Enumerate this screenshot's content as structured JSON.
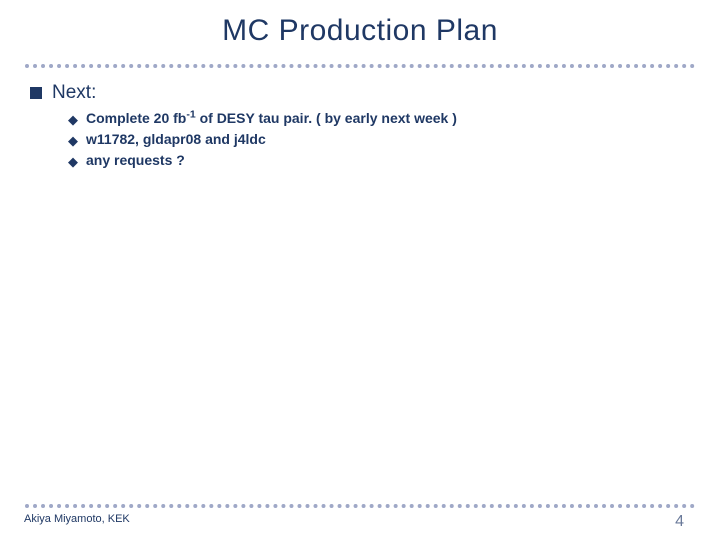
{
  "title": "MC Production Plan",
  "colors": {
    "text_primary": "#1f3864",
    "divider": "#9fa8c7",
    "page_number": "#6a7a9a",
    "background": "#ffffff"
  },
  "typography": {
    "title_fontsize": 30,
    "l1_fontsize": 19,
    "l2_fontsize": 14,
    "l2_fontweight": "bold",
    "footer_left_fontsize": 11,
    "footer_right_fontsize": 16
  },
  "content": {
    "l1_label": "Next:",
    "items": [
      {
        "prefix": "Complete 20 fb",
        "sup": "-1",
        "suffix": "  of DESY tau pair.  ( by early next week )"
      },
      {
        "text": "w11782, gldapr08 and j4ldc"
      },
      {
        "text": "any requests ?"
      }
    ]
  },
  "footer": {
    "left": "Akiya Miyamoto, KEK",
    "page": "4"
  }
}
